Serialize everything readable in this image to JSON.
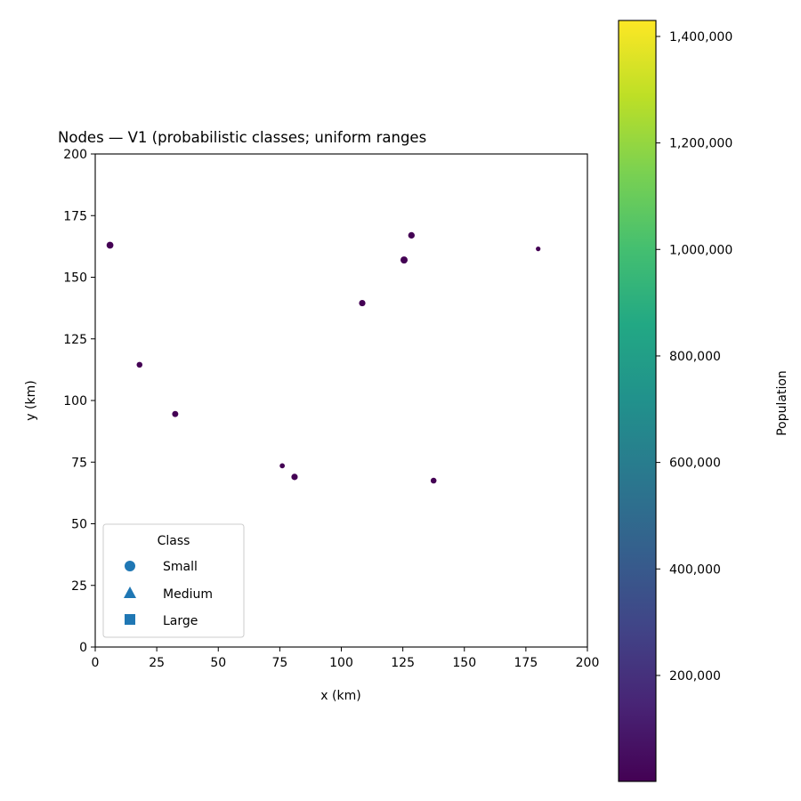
{
  "chart_data": {
    "type": "scatter",
    "title": "Nodes — V1 (probabilistic classes; uniform ranges",
    "xlabel": "x (km)",
    "ylabel": "y (km)",
    "xlim": [
      0,
      200
    ],
    "ylim": [
      0,
      200
    ],
    "xticks": [
      0,
      25,
      50,
      75,
      100,
      125,
      150,
      175,
      200
    ],
    "yticks": [
      0,
      25,
      50,
      75,
      100,
      125,
      150,
      175,
      200
    ],
    "grid": false,
    "legend": {
      "title": "Class",
      "placement": "lower-left",
      "entries": [
        {
          "label": "Small",
          "marker": "circle"
        },
        {
          "label": "Medium",
          "marker": "triangle"
        },
        {
          "label": "Large",
          "marker": "square"
        }
      ],
      "marker_color": "#1f77b4"
    },
    "colorbar": {
      "label": "Population",
      "colormap": "viridis",
      "range": [
        1000,
        1430000
      ],
      "ticks": [
        200000,
        400000,
        600000,
        800000,
        1000000,
        1200000,
        1400000
      ],
      "tick_labels": [
        "200,000",
        "400,000",
        "600,000",
        "800,000",
        "1,000,000",
        "1,200,000",
        "1,400,000"
      ]
    },
    "points": [
      {
        "x": 6,
        "y": 163,
        "class": "Small",
        "population": 9000
      },
      {
        "x": 18,
        "y": 114.5,
        "class": "Small",
        "population": 5000
      },
      {
        "x": 32.5,
        "y": 94.5,
        "class": "Small",
        "population": 6000
      },
      {
        "x": 76,
        "y": 73.5,
        "class": "Small",
        "population": 3000
      },
      {
        "x": 81,
        "y": 69,
        "class": "Small",
        "population": 7000
      },
      {
        "x": 108.5,
        "y": 139.5,
        "class": "Small",
        "population": 7000
      },
      {
        "x": 125.5,
        "y": 157,
        "class": "Small",
        "population": 10000
      },
      {
        "x": 128.5,
        "y": 167,
        "class": "Small",
        "population": 7500
      },
      {
        "x": 137.5,
        "y": 67.5,
        "class": "Small",
        "population": 5000
      },
      {
        "x": 180,
        "y": 161.5,
        "class": "Small",
        "population": 2000
      }
    ],
    "point_color": "#440154"
  }
}
